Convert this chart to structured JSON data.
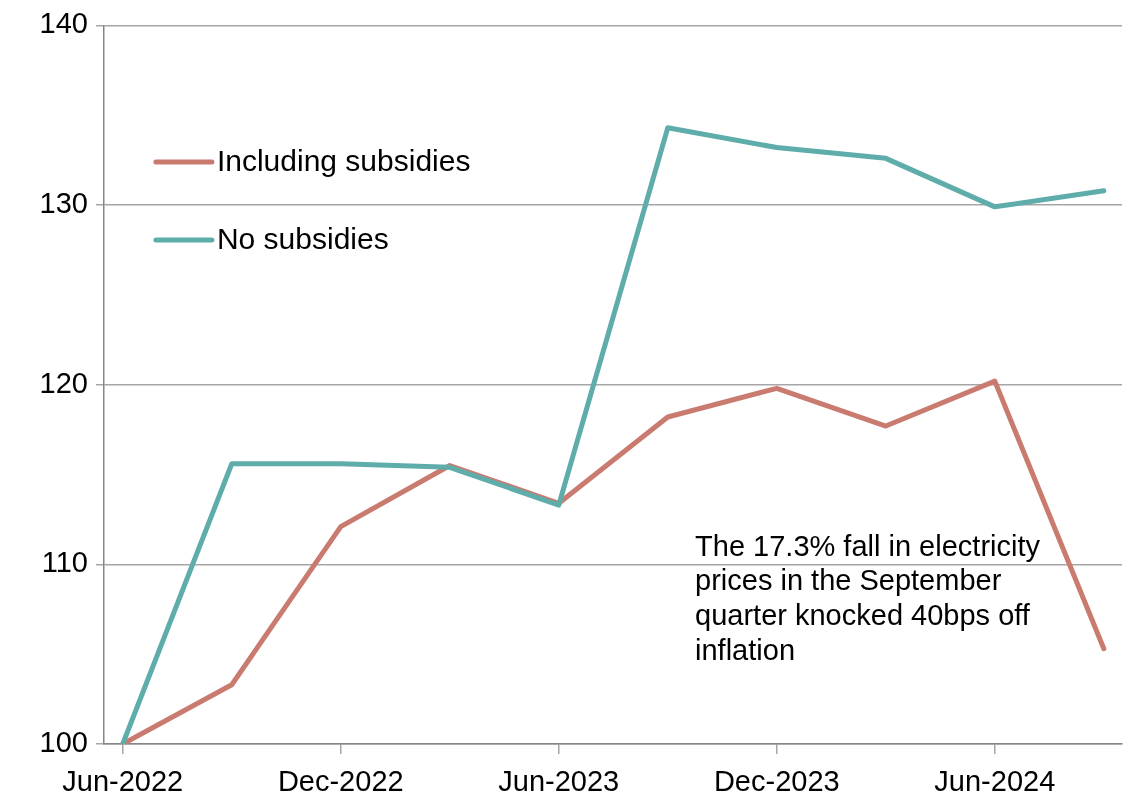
{
  "chart_data": {
    "type": "line",
    "x": [
      "2022-06",
      "2022-09",
      "2022-12",
      "2023-03",
      "2023-06",
      "2023-09",
      "2023-12",
      "2024-03",
      "2024-06",
      "2024-09"
    ],
    "series": [
      {
        "name": "Including subsidies",
        "color": "#c97b70",
        "values": [
          100,
          103.3,
          112.1,
          115.5,
          113.4,
          118.2,
          119.8,
          117.7,
          120.2,
          105.3
        ]
      },
      {
        "name": "No subsidies",
        "color": "#5eadab",
        "values": [
          100,
          115.6,
          115.6,
          115.4,
          113.3,
          134.3,
          133.2,
          132.6,
          129.9,
          130.8
        ]
      }
    ],
    "xlim": [
      "2022-05-16",
      "2024-09-16"
    ],
    "xticks": [
      {
        "value": "2022-06",
        "label": "Jun-2022"
      },
      {
        "value": "2022-12",
        "label": "Dec-2022"
      },
      {
        "value": "2023-06",
        "label": "Jun-2023"
      },
      {
        "value": "2023-12",
        "label": "Dec-2023"
      },
      {
        "value": "2024-06",
        "label": "Jun-2024"
      }
    ],
    "ylim": [
      100,
      140
    ],
    "yticks": [
      100,
      110,
      120,
      130,
      140
    ],
    "grid": "y",
    "legend": "top left",
    "marker": "none",
    "line_style": "solid",
    "annotations": [
      "The 17.3% fall in electricity prices in the September quarter knocked 40bps off inflation"
    ]
  }
}
